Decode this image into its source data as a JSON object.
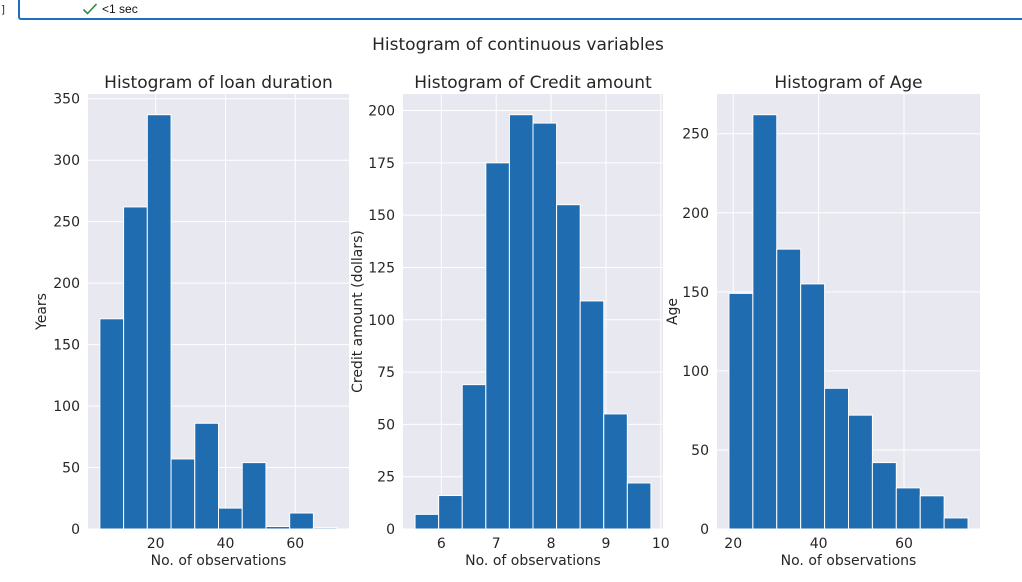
{
  "cell": {
    "bracket": "]",
    "status_icon": "check-icon",
    "status_text": "<1 sec",
    "accent_color": "#1f6fbf",
    "check_color": "#2e8b3a"
  },
  "figure": {
    "suptitle": "Histogram of continuous variables",
    "bar_color": "#1f6db0",
    "axes_background": "#e8e8f0",
    "grid": true
  },
  "chart_data": [
    {
      "type": "bar",
      "title": "Histogram of loan duration",
      "xlabel": "No. of observations",
      "ylabel": "Years",
      "bin_edges": [
        4,
        10.8,
        17.6,
        24.4,
        31.2,
        38,
        44.8,
        51.6,
        58.4,
        65.2,
        72
      ],
      "values": [
        171,
        262,
        337,
        57,
        86,
        17,
        54,
        2,
        13,
        1
      ],
      "xlim": [
        0.6,
        75.4
      ],
      "ylim": [
        0,
        353.85
      ],
      "xticks": [
        20,
        40,
        60
      ],
      "yticks": [
        0,
        50,
        100,
        150,
        200,
        250,
        300,
        350
      ]
    },
    {
      "type": "bar",
      "title": "Histogram of Credit amount",
      "xlabel": "No. of observations",
      "ylabel": "Credit amount (dollars)",
      "bin_edges": [
        5.52,
        5.95,
        6.38,
        6.81,
        7.24,
        7.67,
        8.1,
        8.53,
        8.96,
        9.39,
        9.82
      ],
      "values": [
        7,
        16,
        69,
        175,
        198,
        194,
        155,
        109,
        55,
        22
      ],
      "xlim": [
        5.3,
        10.04
      ],
      "ylim": [
        0,
        207.9
      ],
      "xticks": [
        6,
        7,
        8,
        9,
        10
      ],
      "yticks": [
        0,
        25,
        50,
        75,
        100,
        125,
        150,
        175,
        200
      ]
    },
    {
      "type": "bar",
      "title": "Histogram of Age",
      "xlabel": "No. of observations",
      "ylabel": "Age",
      "bin_edges": [
        19,
        24.6,
        30.2,
        35.8,
        41.4,
        47,
        52.6,
        58.2,
        63.8,
        69.4,
        75
      ],
      "values": [
        149,
        262,
        177,
        155,
        89,
        72,
        42,
        26,
        21,
        7
      ],
      "xlim": [
        16.2,
        77.8
      ],
      "ylim": [
        0,
        275.1
      ],
      "xticks": [
        20,
        40,
        60
      ],
      "yticks": [
        0,
        50,
        100,
        150,
        200,
        250
      ]
    }
  ]
}
